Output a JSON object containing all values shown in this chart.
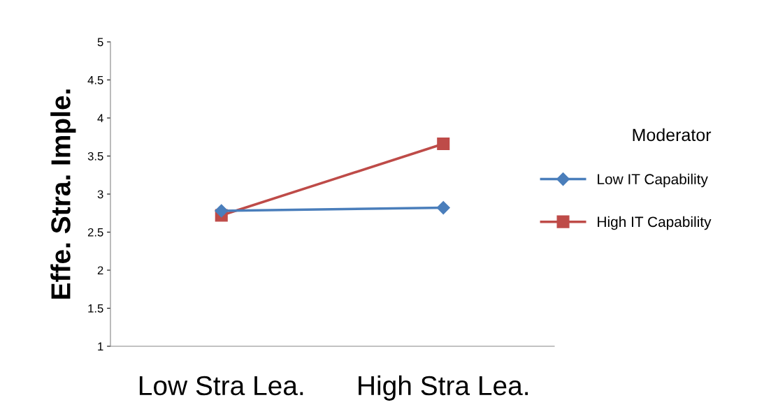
{
  "chart_data": {
    "type": "line",
    "ylabel": "Effe. Stra. Imple.",
    "legend_title": "Moderator",
    "categories": [
      "Low Stra Lea.",
      "High Stra Lea."
    ],
    "series": [
      {
        "name": "Low IT Capability",
        "color": "#4a7ebb",
        "values": [
          2.78,
          2.82
        ],
        "marker": "diamond"
      },
      {
        "name": "High IT Capability",
        "color": "#be4b48",
        "values": [
          2.72,
          3.66
        ],
        "marker": "square"
      }
    ],
    "ylim": [
      1,
      5
    ],
    "yticks": [
      1,
      1.5,
      2,
      2.5,
      3,
      3.5,
      4,
      4.5,
      5
    ],
    "grid": false,
    "legend": "right",
    "line_style": "solid"
  }
}
